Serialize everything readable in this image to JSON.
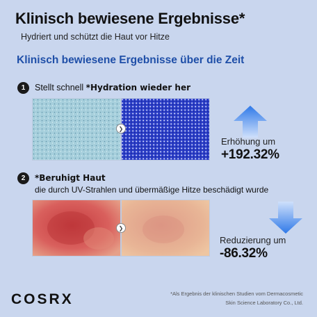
{
  "header": {
    "title": "Klinisch bewiesene Ergebnisse*",
    "subtitle": "Hydriert und schützt die Haut vor Hitze",
    "section_title": "Klinisch bewiesene Ergebnisse über die Zeit"
  },
  "step1": {
    "number": "1",
    "text_plain": "Stellt schnell",
    "text_bold": "*Hydration wieder her",
    "stat_label": "Erhöhung um",
    "stat_value": "+192.32%",
    "arrow_direction": "up",
    "arrow_icon": "up-arrow-icon",
    "before_color": "#a9d2de",
    "after_color": "#2a3ec4"
  },
  "step2": {
    "number": "2",
    "title": "*Beruhigt Haut",
    "description": "die durch UV-Strahlen und übermäßige Hitze beschädigt wurde",
    "stat_label": "Reduzierung um",
    "stat_value": "-86.32%",
    "arrow_direction": "down",
    "arrow_icon": "down-arrow-icon",
    "before_color": "#d4504f",
    "after_color": "#e4ab8f"
  },
  "brand": {
    "logo": "COSRX"
  },
  "footnote": {
    "line1": "*Als Ergebnis der klinischen Studien vom Dermacosmetic",
    "line2": "Skin Science Laboratory Co., Ltd."
  },
  "colors": {
    "background": "#c9d6ee",
    "accent": "#1f4fa8",
    "arrow": "#2e7ae6"
  }
}
